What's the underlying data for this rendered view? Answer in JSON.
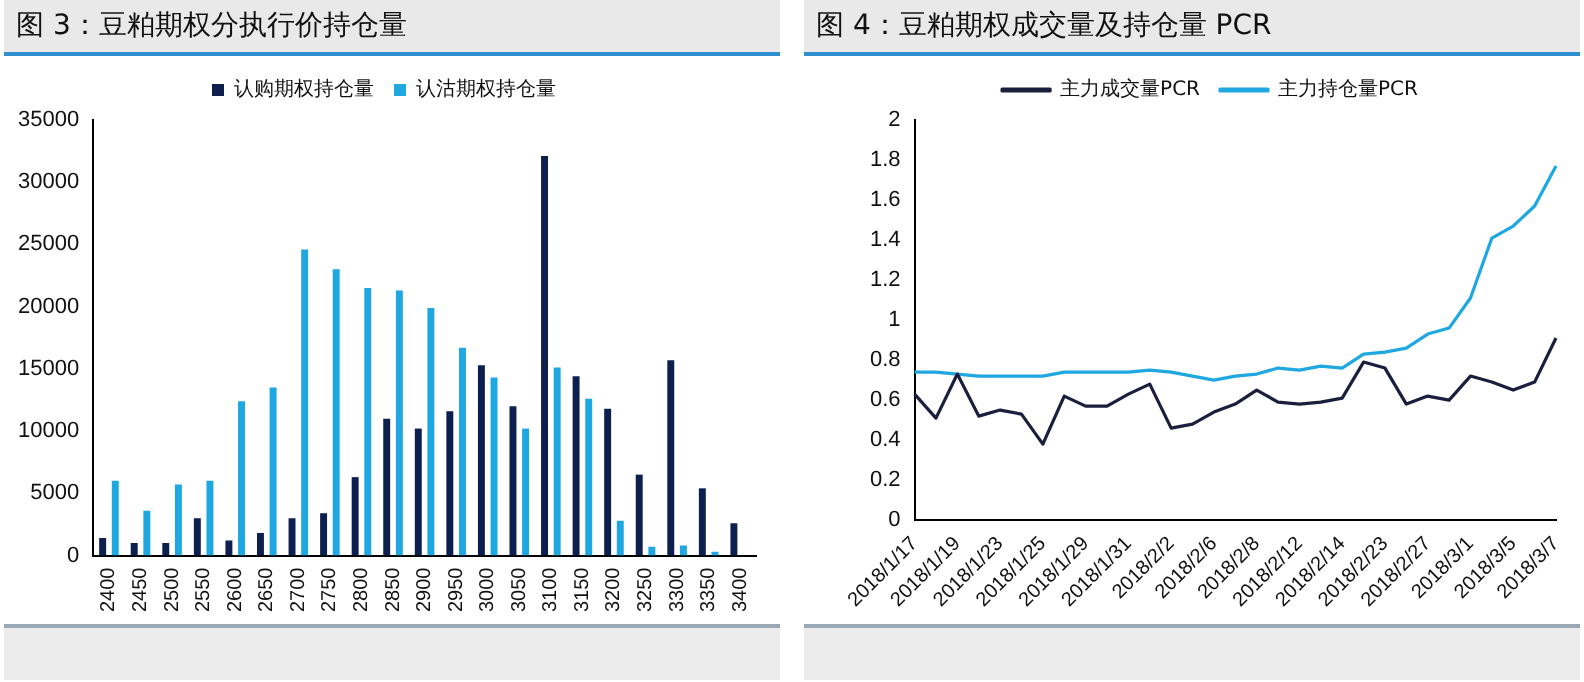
{
  "chart_data": [
    {
      "type": "bar",
      "title": "图 3：豆粕期权分执行价持仓量",
      "categories": [
        "2400",
        "2450",
        "2500",
        "2550",
        "2600",
        "2650",
        "2700",
        "2750",
        "2800",
        "2850",
        "2900",
        "2950",
        "3000",
        "3050",
        "3100",
        "3150",
        "3200",
        "3250",
        "3300",
        "3350",
        "3400"
      ],
      "series": [
        {
          "name": "认购期权持仓量",
          "color": "#0d1f4f",
          "values": [
            1400,
            1000,
            1000,
            3000,
            1200,
            1800,
            3000,
            3400,
            6300,
            11000,
            10200,
            11600,
            15300,
            12000,
            32100,
            14400,
            11800,
            6500,
            15700,
            5400,
            2600
          ]
        },
        {
          "name": "认沽期权持仓量",
          "color": "#1ea7e1",
          "values": [
            6000,
            3600,
            5700,
            6000,
            12400,
            13500,
            24600,
            23000,
            21500,
            21300,
            19900,
            16700,
            14300,
            10200,
            15100,
            12600,
            2800,
            700,
            800,
            300,
            0
          ]
        }
      ],
      "ylim": [
        0,
        35000
      ],
      "yticks": [
        0,
        5000,
        10000,
        15000,
        20000,
        25000,
        30000,
        35000
      ],
      "grid": false,
      "legend": "top"
    },
    {
      "type": "line",
      "title": "图 4：豆粕期权成交量及持仓量 PCR",
      "categories": [
        "2018/1/17",
        null,
        "2018/1/19",
        null,
        "2018/1/23",
        null,
        "2018/1/25",
        null,
        "2018/1/29",
        null,
        "2018/1/31",
        null,
        "2018/2/2",
        null,
        "2018/2/6",
        null,
        "2018/2/8",
        null,
        "2018/2/12",
        null,
        "2018/2/14",
        null,
        "2018/2/23",
        null,
        "2018/2/27",
        null,
        "2018/3/1",
        null,
        "2018/3/5",
        null,
        "2018/3/7"
      ],
      "series": [
        {
          "name": "主力成交量PCR",
          "color": "#1a1f3d",
          "values": [
            0.63,
            0.51,
            0.73,
            0.52,
            0.55,
            0.53,
            0.38,
            0.62,
            0.57,
            0.57,
            0.63,
            0.68,
            0.46,
            0.48,
            0.54,
            0.58,
            0.65,
            0.59,
            0.58,
            0.59,
            0.61,
            0.79,
            0.76,
            0.58,
            0.62,
            0.6,
            0.72,
            0.69,
            0.65,
            0.69,
            0.91
          ]
        },
        {
          "name": "主力持仓量PCR",
          "color": "#1ea7e1",
          "values": [
            0.74,
            0.74,
            0.73,
            0.72,
            0.72,
            0.72,
            0.72,
            0.74,
            0.74,
            0.74,
            0.74,
            0.75,
            0.74,
            0.72,
            0.7,
            0.72,
            0.73,
            0.76,
            0.75,
            0.77,
            0.76,
            0.83,
            0.84,
            0.86,
            0.93,
            0.96,
            1.11,
            1.41,
            1.47,
            1.57,
            1.77
          ]
        }
      ],
      "ylim": [
        0,
        2
      ],
      "yticks": [
        0,
        0.2,
        0.4,
        0.6,
        0.8,
        1,
        1.2,
        1.4,
        1.6,
        1.8,
        2
      ],
      "grid": false,
      "legend": "top",
      "marker": "none",
      "line_style": "solid"
    }
  ]
}
